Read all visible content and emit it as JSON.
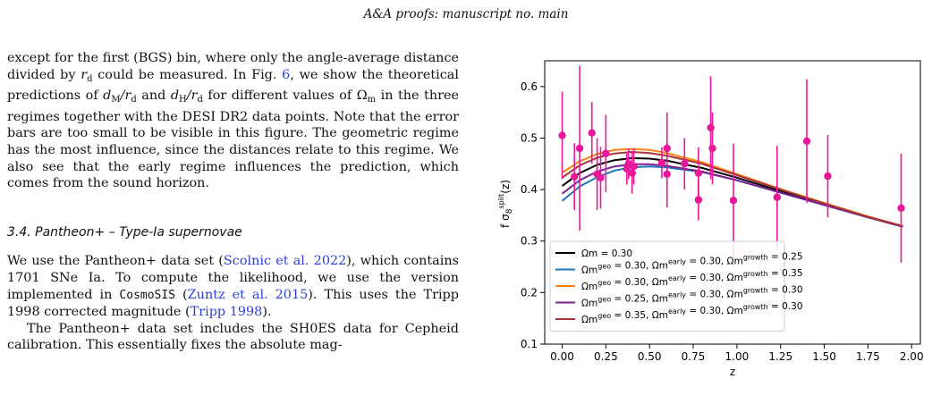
{
  "header": {
    "running_head": "A&A proofs: manuscript no. main"
  },
  "paragraph1": {
    "t1": "except for the first (BGS) bin, where only the angle-average distance divided by ",
    "rd": "r",
    "t2": " could be measured. In Fig. ",
    "fig": "6",
    "t3": ", we show the theoretical predictions of ",
    "dm": "d",
    "over1": "/r",
    "and": " and ",
    "dh": "d",
    "over2": "/r",
    "t4": " for different values of Ω",
    "t5": " in the three regimes together with the DESI DR2 data points. Note that the error bars are too small to be visible in this figure. The geometric regime has the most influence, since the distances relate to this regime. We also see that the early regime influences the prediction, which comes from the sound horizon."
  },
  "section": {
    "title": "3.4. Pantheon+ – Type-Ia supernovae"
  },
  "paragraph2": {
    "t1": "We use the Pantheon+ data set (",
    "c1": "Scolnic et al. 2022",
    "t2": "), which contains 1701 SNe Ia. To compute the likelihood, we use the version implemented in ",
    "code": "CosmoSIS",
    "t3": " (",
    "c2": "Zuntz et al. 2015",
    "t4": "). This uses the Tripp 1998 corrected magnitude (",
    "c3": "Tripp 1998",
    "t5": ")."
  },
  "paragraph3": {
    "text": "The Pantheon+ data set includes the SH0ES data for Cepheid calibration. This essentially fixes the absolute mag-"
  },
  "chart_data": {
    "type": "line",
    "xlabel": "z",
    "ylabel": "f σ8split(z)",
    "xlim": [
      -0.1,
      2.05
    ],
    "ylim": [
      0.1,
      0.65
    ],
    "xticks": [
      "0.00",
      "0.25",
      "0.50",
      "0.75",
      "1.00",
      "1.25",
      "1.50",
      "1.75",
      "2.00"
    ],
    "yticks": [
      "0.1",
      "0.2",
      "0.3",
      "0.4",
      "0.5",
      "0.6"
    ],
    "legend_position": "lower-left",
    "series": [
      {
        "name": "Ωm = 0.30",
        "color": "#000000",
        "x": [
          0,
          0.1,
          0.2,
          0.3,
          0.4,
          0.5,
          0.6,
          0.8,
          1.0,
          1.25,
          1.5,
          1.75,
          1.95
        ],
        "y": [
          0.407,
          0.432,
          0.448,
          0.457,
          0.461,
          0.46,
          0.456,
          0.442,
          0.423,
          0.397,
          0.372,
          0.347,
          0.329
        ]
      },
      {
        "name": "Ωm^geo = 0.30, Ωm^early = 0.30, Ωm^growth = 0.25",
        "color": "#1f77b4",
        "x": [
          0,
          0.1,
          0.2,
          0.3,
          0.4,
          0.5,
          0.6,
          0.8,
          1.0,
          1.25,
          1.5,
          1.75,
          1.95
        ],
        "y": [
          0.378,
          0.406,
          0.424,
          0.437,
          0.443,
          0.445,
          0.443,
          0.434,
          0.418,
          0.394,
          0.37,
          0.346,
          0.328
        ]
      },
      {
        "name": "Ωm^geo = 0.30, Ωm^early = 0.30, Ωm^growth = 0.35",
        "color": "#ff7f0e",
        "x": [
          0,
          0.1,
          0.2,
          0.3,
          0.4,
          0.5,
          0.6,
          0.8,
          1.0,
          1.25,
          1.5,
          1.75,
          1.95
        ],
        "y": [
          0.433,
          0.455,
          0.469,
          0.477,
          0.479,
          0.477,
          0.471,
          0.453,
          0.43,
          0.401,
          0.374,
          0.348,
          0.329
        ]
      },
      {
        "name": "Ωm^geo = 0.25, Ωm^early = 0.30, Ωm^growth = 0.30",
        "color": "#7a1f8f",
        "x": [
          0,
          0.1,
          0.2,
          0.3,
          0.4,
          0.5,
          0.6,
          0.8,
          1.0,
          1.25,
          1.5,
          1.75,
          1.95
        ],
        "y": [
          0.392,
          0.418,
          0.435,
          0.445,
          0.449,
          0.449,
          0.446,
          0.435,
          0.418,
          0.394,
          0.37,
          0.346,
          0.328
        ]
      },
      {
        "name": "Ωm^geo = 0.35, Ωm^early = 0.30, Ωm^growth = 0.30",
        "color": "#a8333a",
        "x": [
          0,
          0.1,
          0.2,
          0.3,
          0.4,
          0.5,
          0.6,
          0.8,
          1.0,
          1.25,
          1.5,
          1.75,
          1.95
        ],
        "y": [
          0.423,
          0.447,
          0.462,
          0.47,
          0.473,
          0.471,
          0.466,
          0.45,
          0.428,
          0.4,
          0.373,
          0.347,
          0.329
        ]
      }
    ],
    "data_points": {
      "color": "#e8189a",
      "points": [
        {
          "x": 0.0,
          "y": 0.505,
          "err": 0.085
        },
        {
          "x": 0.07,
          "y": 0.425,
          "err": 0.065
        },
        {
          "x": 0.1,
          "y": 0.48,
          "err": 0.16
        },
        {
          "x": 0.17,
          "y": 0.51,
          "err": 0.06
        },
        {
          "x": 0.2,
          "y": 0.43,
          "err": 0.07
        },
        {
          "x": 0.22,
          "y": 0.423,
          "err": 0.06
        },
        {
          "x": 0.25,
          "y": 0.47,
          "err": 0.075
        },
        {
          "x": 0.37,
          "y": 0.44,
          "err": 0.03
        },
        {
          "x": 0.38,
          "y": 0.45,
          "err": 0.03
        },
        {
          "x": 0.4,
          "y": 0.432,
          "err": 0.04
        },
        {
          "x": 0.41,
          "y": 0.445,
          "err": 0.035
        },
        {
          "x": 0.57,
          "y": 0.452,
          "err": 0.03
        },
        {
          "x": 0.6,
          "y": 0.48,
          "err": 0.07
        },
        {
          "x": 0.6,
          "y": 0.43,
          "err": 0.065
        },
        {
          "x": 0.7,
          "y": 0.45,
          "err": 0.05
        },
        {
          "x": 0.78,
          "y": 0.432,
          "err": 0.05
        },
        {
          "x": 0.78,
          "y": 0.38,
          "err": 0.04
        },
        {
          "x": 0.85,
          "y": 0.52,
          "err": 0.1
        },
        {
          "x": 0.86,
          "y": 0.48,
          "err": 0.07
        },
        {
          "x": 0.98,
          "y": 0.379,
          "err": 0.11
        },
        {
          "x": 1.23,
          "y": 0.385,
          "err": 0.1
        },
        {
          "x": 1.4,
          "y": 0.494,
          "err": 0.12
        },
        {
          "x": 1.52,
          "y": 0.426,
          "err": 0.08
        },
        {
          "x": 1.94,
          "y": 0.364,
          "err": 0.106
        }
      ]
    }
  }
}
